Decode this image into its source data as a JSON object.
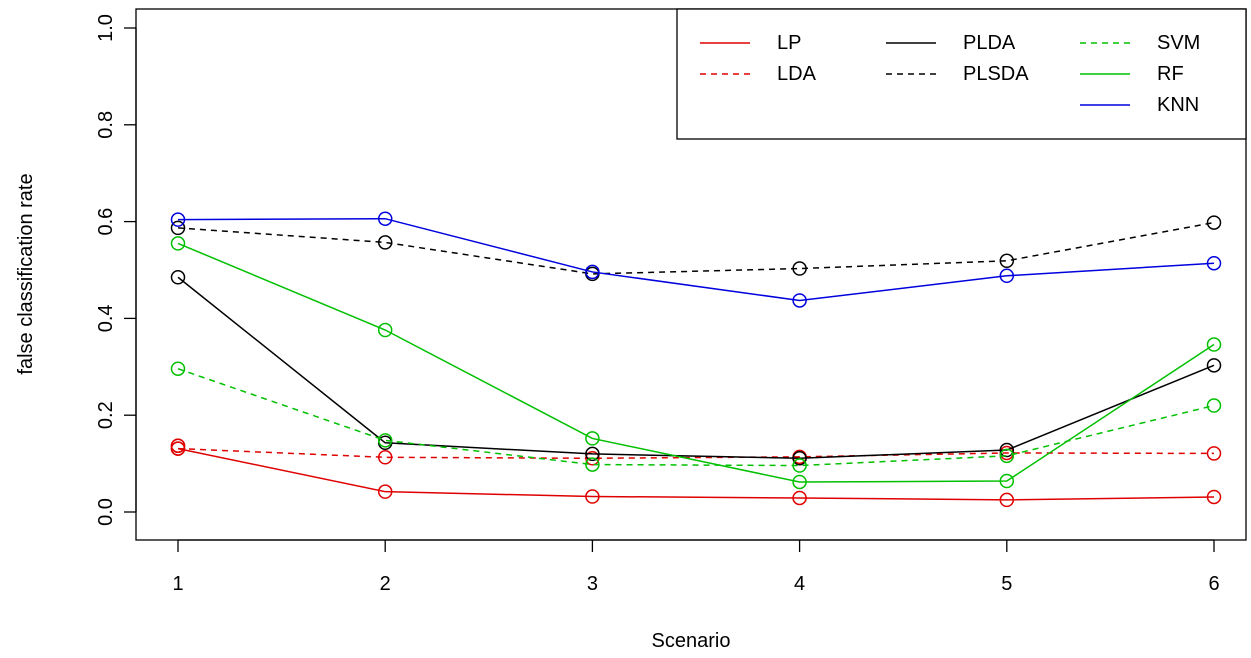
{
  "chart_data": {
    "type": "line",
    "xlabel": "Scenario",
    "ylabel": "false classification rate",
    "x": [
      1,
      2,
      3,
      4,
      5,
      6
    ],
    "xlim": [
      1,
      6
    ],
    "ylim": [
      0,
      1
    ],
    "x_ticks": [
      "1",
      "2",
      "3",
      "4",
      "5",
      "6"
    ],
    "y_ticks": [
      "0.0",
      "0.2",
      "0.4",
      "0.6",
      "0.8",
      "1.0"
    ],
    "grid": false,
    "legend_position": "top-right",
    "series": [
      {
        "name": "LP",
        "color": "#DF0000",
        "dash": "solid",
        "values": [
          0.131,
          0.042,
          0.032,
          0.029,
          0.025,
          0.031
        ],
        "extra_points": [
          {
            "x": 1,
            "y": 0.137
          }
        ]
      },
      {
        "name": "LDA",
        "color": "#DF0000",
        "dash": "dashed",
        "values": [
          0.131,
          0.113,
          0.111,
          0.114,
          0.122,
          0.121
        ],
        "extra_points": [
          {
            "x": 1,
            "y": 0.137
          }
        ]
      },
      {
        "name": "PLDA",
        "color": "#000000",
        "dash": "solid",
        "values": [
          0.485,
          0.143,
          0.12,
          0.111,
          0.128,
          0.303
        ],
        "extra_points": []
      },
      {
        "name": "PLSDA",
        "color": "#000000",
        "dash": "dashed",
        "values": [
          0.587,
          0.557,
          0.492,
          0.503,
          0.519,
          0.598
        ],
        "extra_points": []
      },
      {
        "name": "SVM",
        "color": "#00C000",
        "dash": "dashed",
        "values": [
          0.296,
          0.148,
          0.098,
          0.096,
          0.116,
          0.22
        ],
        "extra_points": []
      },
      {
        "name": "RF",
        "color": "#00C000",
        "dash": "solid",
        "values": [
          0.555,
          0.376,
          0.152,
          0.062,
          0.064,
          0.346
        ],
        "extra_points": []
      },
      {
        "name": "KNN",
        "color": "#0000DF",
        "dash": "solid",
        "values": [
          0.604,
          0.606,
          0.496,
          0.437,
          0.488,
          0.514
        ],
        "extra_points": []
      }
    ],
    "legend": {
      "columns": [
        [
          "LP",
          "LDA"
        ],
        [
          "PLDA",
          "PLSDA"
        ],
        [
          "SVM",
          "RF",
          "KNN"
        ]
      ]
    }
  }
}
